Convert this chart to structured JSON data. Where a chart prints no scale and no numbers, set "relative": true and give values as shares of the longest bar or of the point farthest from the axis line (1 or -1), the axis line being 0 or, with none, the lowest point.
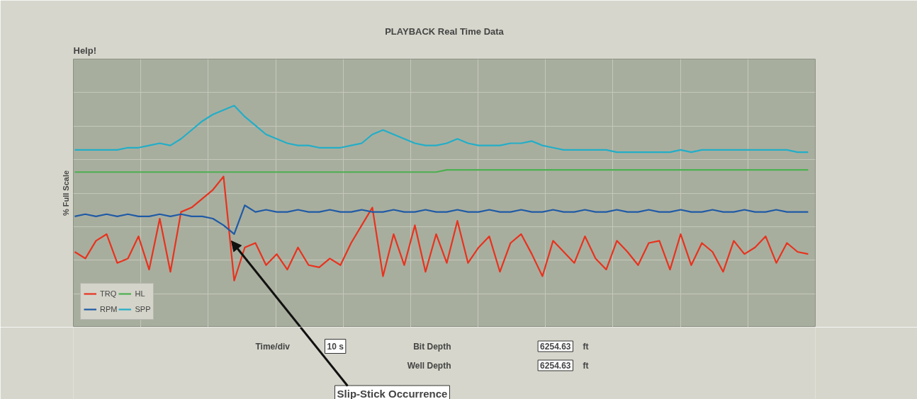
{
  "chart_data": {
    "type": "line",
    "title": "PLAYBACK Real Time Data",
    "ylabel": "% Full Scale",
    "relative": true,
    "grid": true,
    "legend": "bottom left",
    "categories": [
      null,
      null,
      null,
      null,
      null,
      null,
      null,
      null,
      null,
      null,
      null,
      null,
      null,
      null,
      null,
      null,
      null,
      null,
      null,
      null,
      null,
      null,
      null,
      null,
      null,
      null,
      null,
      null,
      null,
      null,
      null,
      null,
      null,
      null,
      null,
      null,
      null,
      null,
      null,
      null,
      null,
      null,
      null,
      null,
      null,
      null,
      null,
      null,
      null,
      null,
      null,
      null,
      null,
      null,
      null,
      null,
      null,
      null,
      null,
      null,
      null,
      null,
      null,
      null,
      null,
      null,
      null,
      null,
      null,
      null
    ],
    "series": [
      {
        "name": "TRQ",
        "color": "#e8321e",
        "values": [
          0.34,
          0.31,
          0.39,
          0.42,
          0.29,
          0.31,
          0.41,
          0.26,
          0.49,
          0.25,
          0.52,
          0.54,
          0.58,
          0.62,
          0.68,
          0.21,
          0.36,
          0.38,
          0.28,
          0.33,
          0.26,
          0.36,
          0.28,
          0.27,
          0.31,
          0.28,
          0.38,
          0.46,
          0.54,
          0.23,
          0.42,
          0.28,
          0.46,
          0.25,
          0.42,
          0.29,
          0.48,
          0.29,
          0.36,
          0.41,
          0.25,
          0.38,
          0.42,
          0.33,
          0.23,
          0.39,
          0.34,
          0.29,
          0.41,
          0.31,
          0.26,
          0.39,
          0.34,
          0.28,
          0.38,
          0.39,
          0.26,
          0.42,
          0.28,
          0.38,
          0.34,
          0.25,
          0.39,
          0.33,
          0.36,
          0.41,
          0.29,
          0.38,
          0.34,
          0.33
        ]
      },
      {
        "name": "RPM",
        "color": "#1f5aa6",
        "values": [
          0.5,
          0.51,
          0.5,
          0.51,
          0.5,
          0.51,
          0.5,
          0.5,
          0.51,
          0.5,
          0.51,
          0.5,
          0.5,
          0.49,
          0.46,
          0.42,
          0.55,
          0.52,
          0.53,
          0.52,
          0.52,
          0.53,
          0.52,
          0.52,
          0.53,
          0.52,
          0.52,
          0.53,
          0.52,
          0.52,
          0.53,
          0.52,
          0.52,
          0.53,
          0.52,
          0.52,
          0.53,
          0.52,
          0.52,
          0.53,
          0.52,
          0.52,
          0.53,
          0.52,
          0.52,
          0.53,
          0.52,
          0.52,
          0.53,
          0.52,
          0.52,
          0.53,
          0.52,
          0.52,
          0.53,
          0.52,
          0.52,
          0.53,
          0.52,
          0.52,
          0.53,
          0.52,
          0.52,
          0.53,
          0.52,
          0.52,
          0.53,
          0.52,
          0.52,
          0.52
        ]
      },
      {
        "name": "HL",
        "color": "#4caf50",
        "values": [
          0.7,
          0.7,
          0.7,
          0.7,
          0.7,
          0.7,
          0.7,
          0.7,
          0.7,
          0.7,
          0.7,
          0.7,
          0.7,
          0.7,
          0.7,
          0.7,
          0.7,
          0.7,
          0.7,
          0.7,
          0.7,
          0.7,
          0.7,
          0.7,
          0.7,
          0.7,
          0.7,
          0.7,
          0.7,
          0.7,
          0.7,
          0.7,
          0.7,
          0.7,
          0.7,
          0.71,
          0.71,
          0.71,
          0.71,
          0.71,
          0.71,
          0.71,
          0.71,
          0.71,
          0.71,
          0.71,
          0.71,
          0.71,
          0.71,
          0.71,
          0.71,
          0.71,
          0.71,
          0.71,
          0.71,
          0.71,
          0.71,
          0.71,
          0.71,
          0.71,
          0.71,
          0.71,
          0.71,
          0.71,
          0.71,
          0.71,
          0.71,
          0.71,
          0.71,
          0.71
        ]
      },
      {
        "name": "SPP",
        "color": "#22aec8",
        "values": [
          0.8,
          0.8,
          0.8,
          0.8,
          0.8,
          0.81,
          0.81,
          0.82,
          0.83,
          0.82,
          0.85,
          0.89,
          0.93,
          0.96,
          0.98,
          1.0,
          0.95,
          0.91,
          0.87,
          0.85,
          0.83,
          0.82,
          0.82,
          0.81,
          0.81,
          0.81,
          0.82,
          0.83,
          0.87,
          0.89,
          0.87,
          0.85,
          0.83,
          0.82,
          0.82,
          0.83,
          0.85,
          0.83,
          0.82,
          0.82,
          0.82,
          0.83,
          0.83,
          0.84,
          0.82,
          0.81,
          0.8,
          0.8,
          0.8,
          0.8,
          0.8,
          0.79,
          0.79,
          0.79,
          0.79,
          0.79,
          0.79,
          0.8,
          0.79,
          0.8,
          0.8,
          0.8,
          0.8,
          0.8,
          0.8,
          0.8,
          0.8,
          0.8,
          0.79,
          0.79
        ]
      }
    ],
    "annotations": [
      "Help!",
      "Time/div",
      "10 s",
      "Bit Depth",
      "6254.63",
      "ft",
      "Well Depth",
      "6254.63",
      "ft",
      "Slip-Stick Occurrence"
    ]
  }
}
